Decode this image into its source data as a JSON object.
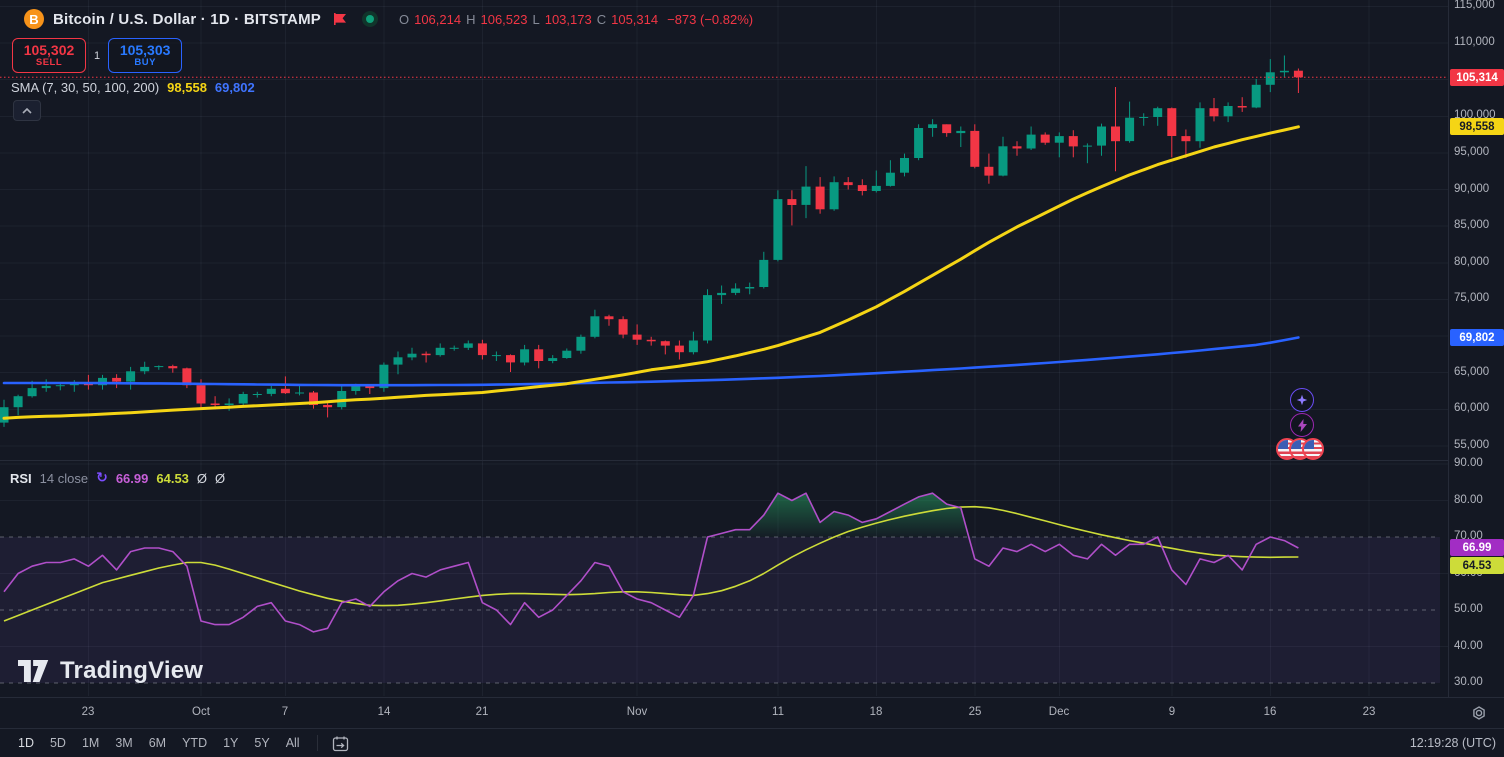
{
  "header": {
    "logo_letter": "B",
    "symbol_title": "Bitcoin / U.S. Dollar · 1D · BITSTAMP",
    "ohlc": {
      "o_label": "O",
      "o": "106,214",
      "h_label": "H",
      "h": "106,523",
      "l_label": "L",
      "l": "103,173",
      "c_label": "C",
      "c": "105,314",
      "change": "−873 (−0.82%)"
    }
  },
  "trade_panel": {
    "sell_price": "105,302",
    "sell_label": "SELL",
    "spread": "1",
    "buy_price": "105,303",
    "buy_label": "BUY"
  },
  "sma_legend": {
    "label": "SMA (7, 30, 50, 100, 200)",
    "value_fast": "98,558",
    "value_slow": "69,802"
  },
  "rsi_legend": {
    "title": "RSI",
    "params": "14 close",
    "refresh_icon": "↻",
    "value": "66.99",
    "ma_value": "64.53",
    "extra1": "Ø",
    "extra2": "Ø"
  },
  "watermark": {
    "text": "TradingView"
  },
  "side_buttons": [
    {
      "name": "sparkle-button",
      "icon": "four-point-star"
    },
    {
      "name": "lightning-button",
      "icon": "lightning-bolt"
    },
    {
      "name": "flags-button",
      "icon": "us-flag",
      "count": 3
    }
  ],
  "colors": {
    "up": "#089981",
    "down": "#f23645",
    "sma_fast": "#f5d515",
    "sma_slow": "#2962ff",
    "rsi": "#b04fc9",
    "rsi_ma": "#cddc39",
    "price_line": "#f23645",
    "accent_buy": "#2962ff",
    "accent_sell": "#f23645"
  },
  "price_axis": {
    "ticks": [
      115000,
      110000,
      100000,
      95000,
      90000,
      85000,
      80000,
      75000,
      65000,
      60000,
      55000
    ],
    "tags": [
      {
        "text": "105,314",
        "value": 105314,
        "bg": "#f23645",
        "fg": "#ffffff",
        "pane": "price"
      },
      {
        "text": "98,558",
        "value": 98558,
        "bg": "#f5d515",
        "fg": "#171b26",
        "pane": "price"
      },
      {
        "text": "69,802",
        "value": 69802,
        "bg": "#2962ff",
        "fg": "#ffffff",
        "pane": "price"
      },
      {
        "text": "66.99",
        "value": 66.99,
        "bg": "#a22dc4",
        "fg": "#ffffff",
        "pane": "rsi"
      },
      {
        "text": "64.53",
        "value": 64.53,
        "bg": "#cddc39",
        "fg": "#171b26",
        "pane": "rsi"
      }
    ]
  },
  "rsi_axis": {
    "ticks": [
      90,
      80,
      70,
      60,
      50,
      40,
      30
    ]
  },
  "time_axis": {
    "ticks": [
      {
        "i": 6,
        "label": "23"
      },
      {
        "i": 14,
        "label": "Oct"
      },
      {
        "i": 20,
        "label": "7"
      },
      {
        "i": 27,
        "label": "14"
      },
      {
        "i": 34,
        "label": "21"
      },
      {
        "i": 45,
        "label": "Nov"
      },
      {
        "i": 55,
        "label": "11"
      },
      {
        "i": 62,
        "label": "18"
      },
      {
        "i": 69,
        "label": "25"
      },
      {
        "i": 75,
        "label": "Dec"
      },
      {
        "i": 83,
        "label": "9"
      },
      {
        "i": 90,
        "label": "16"
      },
      {
        "i": 97,
        "label": "23"
      }
    ]
  },
  "toolbar": {
    "ranges": [
      "1D",
      "5D",
      "1M",
      "3M",
      "6M",
      "YTD",
      "1Y",
      "5Y",
      "All"
    ],
    "active_range": "1D",
    "timestamp": "12:19:28 (UTC)"
  },
  "chart_data": {
    "type": "candlestick",
    "title": "Bitcoin / U.S. Dollar · 1D · BITSTAMP",
    "last": {
      "open": 106214,
      "high": 106523,
      "low": 103173,
      "close": 105314,
      "change": "−873",
      "change_pct": "−0.82%"
    },
    "price_scale_visible": [
      55000,
      115000
    ],
    "open": [
      58200,
      60300,
      61800,
      62900,
      63200,
      63300,
      63600,
      63300,
      64300,
      63800,
      65200,
      65800,
      65900,
      65600,
      63300,
      60800,
      60600,
      60800,
      62100,
      62100,
      62800,
      62200,
      62300,
      60600,
      60300,
      62500,
      63200,
      62900,
      66100,
      67100,
      67600,
      67400,
      68400,
      68400,
      69000,
      67400,
      67400,
      66400,
      68200,
      66600,
      67000,
      68000,
      69900,
      72700,
      72300,
      70200,
      69500,
      69300,
      68700,
      67800,
      69400,
      75600,
      75900,
      76500,
      76700,
      80400,
      88700,
      87900,
      90400,
      87300,
      91000,
      90600,
      89800,
      90500,
      92300,
      94300,
      98400,
      98900,
      97700,
      98000,
      93100,
      91900,
      95900,
      95600,
      97500,
      96400,
      97300,
      95900,
      96000,
      98600,
      96600,
      99800,
      99900,
      101100,
      97300,
      96600,
      101100,
      100000,
      101400,
      101200,
      104300,
      106000,
      106214
    ],
    "high": [
      61300,
      62000,
      63900,
      64100,
      63600,
      64000,
      64700,
      64700,
      64800,
      65800,
      66500,
      66000,
      66100,
      65700,
      64100,
      61800,
      61500,
      62400,
      62400,
      63200,
      64500,
      63200,
      62500,
      61100,
      63400,
      63500,
      63300,
      66400,
      67900,
      68400,
      67900,
      69000,
      68700,
      69400,
      69500,
      67900,
      67500,
      68800,
      68800,
      67400,
      68300,
      70200,
      73600,
      72900,
      72700,
      71600,
      69900,
      69400,
      69400,
      70600,
      76400,
      76900,
      77200,
      77300,
      81500,
      89900,
      89900,
      93200,
      91700,
      91800,
      91700,
      91400,
      92600,
      94000,
      94900,
      98900,
      99600,
      98900,
      98600,
      98900,
      94900,
      97200,
      96600,
      98600,
      97800,
      97800,
      98100,
      96300,
      99000,
      104000,
      102000,
      100400,
      101300,
      101200,
      98200,
      101900,
      102500,
      101900,
      102600,
      105100,
      107800,
      108300,
      106523
    ],
    "low": [
      57600,
      59200,
      61600,
      62400,
      62600,
      62400,
      62700,
      62700,
      62900,
      62700,
      64800,
      65400,
      65000,
      62900,
      60200,
      60000,
      59800,
      60500,
      61600,
      61800,
      62100,
      61900,
      60100,
      58900,
      60000,
      62000,
      62100,
      62400,
      64800,
      66700,
      66400,
      67200,
      68000,
      68100,
      66800,
      66600,
      65100,
      66000,
      65600,
      66300,
      66900,
      67600,
      69700,
      71400,
      69700,
      68800,
      68700,
      67500,
      66800,
      67500,
      69000,
      74400,
      75600,
      75700,
      76500,
      80200,
      85100,
      86100,
      86700,
      87100,
      90000,
      89200,
      89600,
      90400,
      91800,
      94000,
      97200,
      97200,
      95800,
      92900,
      90800,
      91800,
      94600,
      95400,
      96100,
      94400,
      94400,
      93600,
      94600,
      92500,
      96400,
      98700,
      98700,
      94400,
      94300,
      95700,
      99300,
      99200,
      100600,
      101100,
      103300,
      105300,
      103173
    ],
    "close": [
      60300,
      61800,
      62900,
      63200,
      63300,
      63600,
      63300,
      64300,
      63800,
      65200,
      65800,
      65900,
      65600,
      63300,
      60800,
      60600,
      60800,
      62100,
      62100,
      62800,
      62200,
      62300,
      60600,
      60300,
      62500,
      63200,
      62900,
      66100,
      67100,
      67600,
      67400,
      68400,
      68400,
      69000,
      67400,
      67400,
      66400,
      68200,
      66600,
      67000,
      68000,
      69900,
      72700,
      72300,
      70200,
      69500,
      69300,
      68700,
      67800,
      69400,
      75600,
      75900,
      76500,
      76700,
      80400,
      88700,
      87900,
      90400,
      87300,
      91000,
      90600,
      89800,
      90500,
      92300,
      94300,
      98400,
      98900,
      97700,
      98000,
      93100,
      91900,
      95900,
      95600,
      97500,
      96400,
      97300,
      95900,
      96000,
      98600,
      96600,
      99800,
      99900,
      101100,
      97300,
      96600,
      101100,
      100000,
      101400,
      101200,
      104300,
      106000,
      106200,
      105314
    ],
    "series": [
      {
        "name": "sma-blue",
        "color": "#2962ff",
        "width": 2.6,
        "last_label": "69,802",
        "values": [
          63600,
          63600,
          63600,
          63600,
          63600,
          63600,
          63590,
          63580,
          63570,
          63560,
          63550,
          63540,
          63520,
          63500,
          63480,
          63460,
          63440,
          63420,
          63400,
          63380,
          63360,
          63340,
          63320,
          63310,
          63300,
          63300,
          63300,
          63300,
          63300,
          63300,
          63310,
          63320,
          63330,
          63340,
          63350,
          63380,
          63410,
          63440,
          63470,
          63500,
          63540,
          63580,
          63620,
          63660,
          63700,
          63740,
          63780,
          63830,
          63880,
          63930,
          63980,
          64040,
          64100,
          64170,
          64240,
          64310,
          64390,
          64470,
          64560,
          64650,
          64740,
          64840,
          64940,
          65040,
          65140,
          65250,
          65360,
          65470,
          65580,
          65700,
          65820,
          65940,
          66070,
          66200,
          66330,
          66470,
          66610,
          66750,
          66900,
          67050,
          67200,
          67360,
          67520,
          67690,
          67860,
          68040,
          68220,
          68410,
          68600,
          68800,
          69100,
          69450,
          69802
        ]
      },
      {
        "name": "sma-yellow",
        "color": "#f5d515",
        "width": 3,
        "last_label": "98,558",
        "values": [
          58800,
          58900,
          59000,
          59050,
          59100,
          59175,
          59250,
          59350,
          59450,
          59550,
          59650,
          59775,
          59900,
          60000,
          60100,
          60200,
          60300,
          60400,
          60500,
          60600,
          60700,
          60800,
          60900,
          61050,
          61200,
          61300,
          61400,
          61525,
          61650,
          61775,
          61900,
          62000,
          62100,
          62200,
          62300,
          62500,
          62700,
          62900,
          63100,
          63300,
          63500,
          63800,
          64100,
          64400,
          64700,
          65050,
          65400,
          65650,
          65900,
          66200,
          66500,
          66900,
          67300,
          67750,
          68200,
          68700,
          69300,
          69900,
          70500,
          71350,
          72200,
          73100,
          74000,
          75050,
          76100,
          77200,
          78300,
          79400,
          80500,
          81650,
          82800,
          83850,
          84900,
          85850,
          86800,
          87750,
          88700,
          89550,
          90400,
          91200,
          92000,
          92700,
          93400,
          94000,
          94600,
          95200,
          95800,
          96300,
          96800,
          97250,
          97700,
          98130,
          98558
        ]
      }
    ],
    "rsi": {
      "name": "RSI 14 close",
      "color": "#b04fc9",
      "ma_color": "#cddc39",
      "bands": [
        70,
        50,
        30
      ],
      "last": 66.99,
      "ma_last": 64.53,
      "scale_visible": [
        30,
        90
      ],
      "values": [
        55,
        60,
        62,
        63,
        63,
        64,
        62,
        65,
        61,
        66,
        67,
        67,
        66,
        62,
        47,
        46,
        46,
        48,
        51,
        52,
        47,
        46,
        44,
        45,
        52,
        53,
        51,
        55,
        58,
        60,
        59,
        61,
        62,
        63,
        52,
        50,
        46,
        52,
        48,
        50,
        54,
        58,
        63,
        62,
        55,
        53,
        52,
        50,
        48,
        54,
        70,
        71,
        72,
        72,
        76,
        82,
        80,
        82,
        74,
        77,
        76,
        74,
        75,
        77,
        79,
        81,
        82,
        79,
        78,
        64,
        62,
        67,
        66,
        68,
        66,
        68,
        65,
        64,
        68,
        65,
        68,
        68,
        70,
        61,
        57,
        64,
        63,
        65,
        61,
        68,
        70,
        69,
        66.99
      ],
      "ma": [
        47,
        48.5,
        50,
        51.5,
        53,
        54.5,
        56,
        57.5,
        58.5,
        59.5,
        60.5,
        61.5,
        62.3,
        63,
        63,
        62.3,
        61.2,
        60,
        58.8,
        57.6,
        56.4,
        55.2,
        54.2,
        53.2,
        52.4,
        51.8,
        51.3,
        51.2,
        51.3,
        51.6,
        52,
        52.5,
        53,
        53.5,
        54,
        54.3,
        54.5,
        54.5,
        54.4,
        54.3,
        54.2,
        54.3,
        54.5,
        54.8,
        55,
        55,
        54.8,
        54.5,
        54.2,
        54,
        54.5,
        55.3,
        56.5,
        58,
        60,
        62.3,
        64.5,
        66.5,
        68.3,
        70,
        71.5,
        72.7,
        73.8,
        74.8,
        75.7,
        76.5,
        77.2,
        77.8,
        78.2,
        78.3,
        78,
        77.3,
        76.4,
        75.4,
        74.4,
        73.4,
        72.4,
        71.5,
        70.6,
        69.8,
        69,
        68.3,
        67.6,
        66.9,
        66.2,
        65.6,
        65.1,
        64.8,
        64.6,
        64.5,
        64.45,
        64.5,
        64.53
      ]
    }
  }
}
